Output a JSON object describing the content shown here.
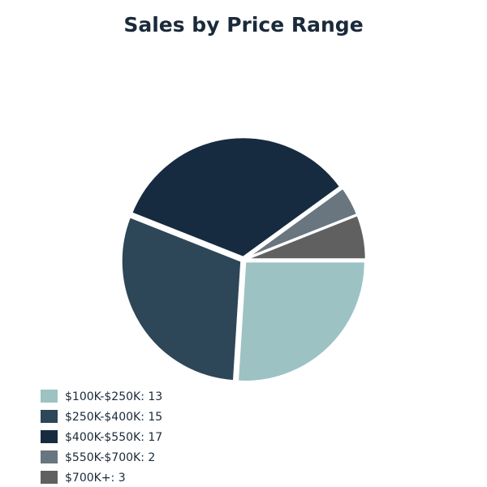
{
  "chart_data": {
    "type": "pie",
    "title": "Sales by Price Range",
    "slices": [
      {
        "label": "$100K-$250K",
        "value": 13,
        "color": "#9dc2c3"
      },
      {
        "label": "$250K-$400K",
        "value": 15,
        "color": "#2d4658"
      },
      {
        "label": "$400K-$550K",
        "value": 17,
        "color": "#172b40"
      },
      {
        "label": "$550K-$700K",
        "value": 2,
        "color": "#69757f"
      },
      {
        "label": "$700K+",
        "value": 3,
        "color": "#606060"
      }
    ],
    "legend": {
      "placement": "bottom-left",
      "entries": [
        "$100K-$250K: 13",
        "$250K-$400K: 15",
        "$400K-$550K: 17",
        "$550K-$700K: 2",
        "$700K+: 3"
      ]
    }
  }
}
